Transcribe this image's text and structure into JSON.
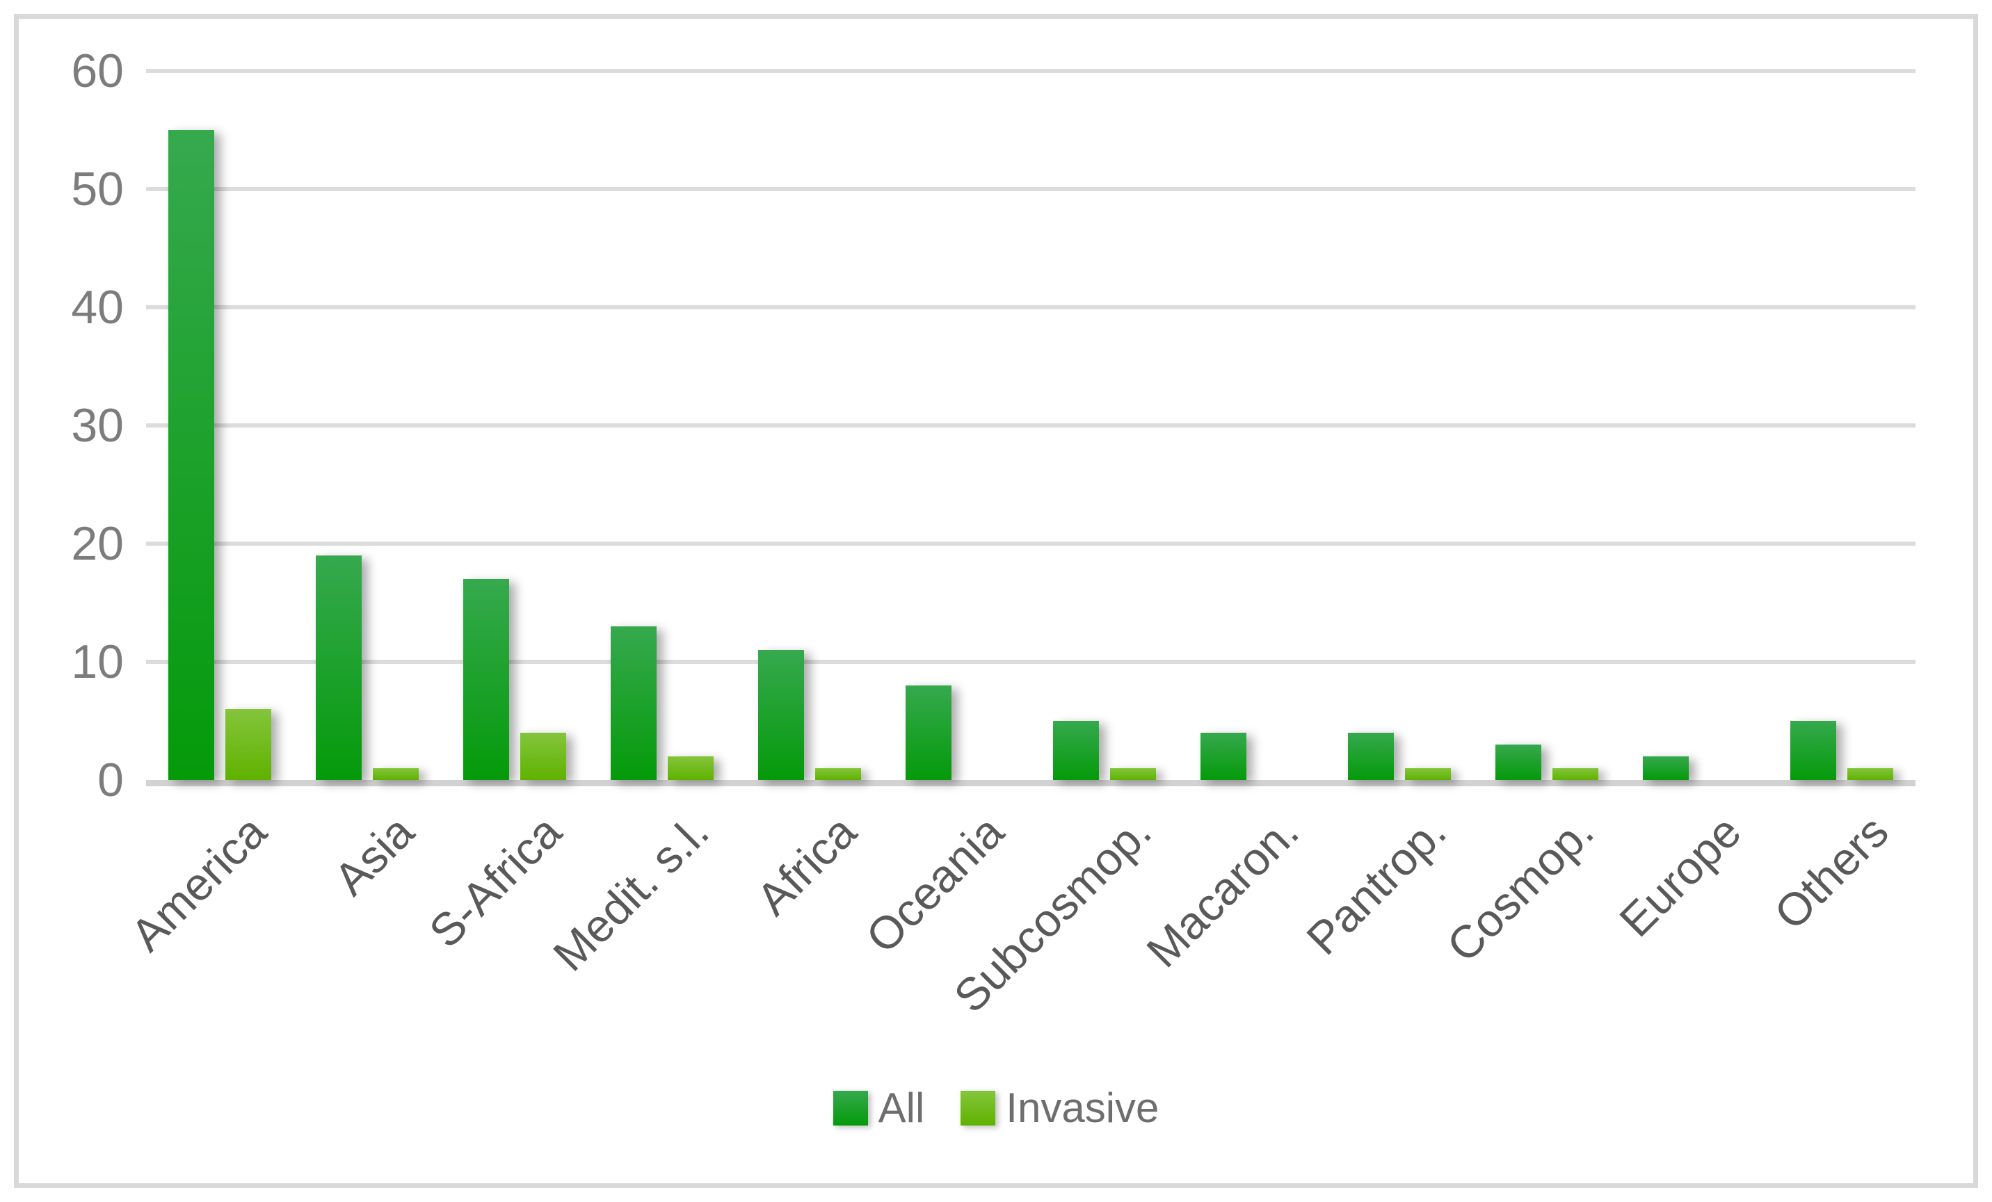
{
  "chart_data": {
    "type": "bar",
    "title": "",
    "xlabel": "",
    "ylabel": "",
    "categories": [
      "America",
      "Asia",
      "S-Africa",
      "Medit. s.l.",
      "Africa",
      "Oceania",
      "Subcosmop.",
      "Macaron.",
      "Pantrop.",
      "Cosmop.",
      "Europe",
      "Others"
    ],
    "series": [
      {
        "name": "All",
        "values": [
          55,
          19,
          17,
          13,
          11,
          8,
          5,
          4,
          4,
          3,
          2,
          5
        ]
      },
      {
        "name": "Invasive",
        "values": [
          6,
          1,
          4,
          2,
          1,
          0,
          1,
          0,
          1,
          1,
          0,
          1
        ]
      }
    ],
    "ylim": [
      0,
      60
    ],
    "yticks": [
      0,
      10,
      20,
      30,
      40,
      50,
      60
    ],
    "grid": "horizontal",
    "legend_position": "bottom-center",
    "x_label_rotation_deg": -45
  },
  "colors": {
    "all_bar_top": "#36a94e",
    "all_bar_bottom": "#049a0a",
    "invasive_bar_top": "#84c53c",
    "invasive_bar_bottom": "#5fb200",
    "gridline": "#dcdcdc",
    "axis_line": "#d2d2d2",
    "frame_border": "#d9d9d9",
    "y_tick_text": "#7c7c7c",
    "category_text": "#595959",
    "legend_text": "#6e6e6e",
    "background": "#ffffff"
  }
}
